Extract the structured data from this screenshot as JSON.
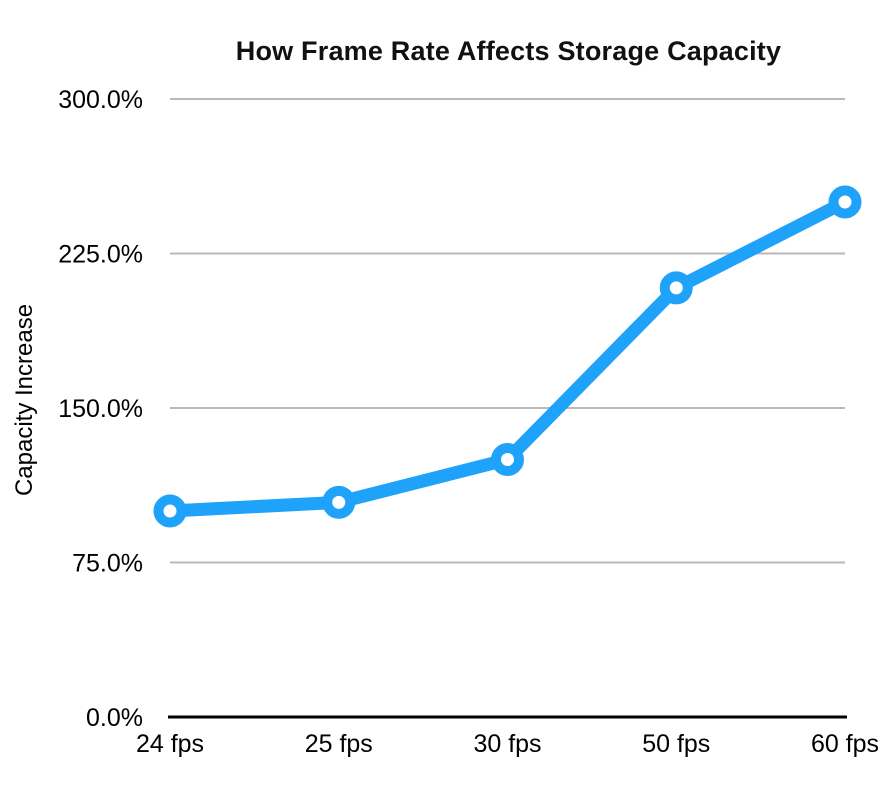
{
  "chart_data": {
    "type": "line",
    "title": "How Frame Rate Affects Storage Capacity",
    "xlabel": "",
    "ylabel": "Capacity Increase",
    "categories": [
      "24 fps",
      "25 fps",
      "30 fps",
      "50 fps",
      "60 fps"
    ],
    "series": [
      {
        "name": "Capacity Increase",
        "values": [
          100.0,
          104.2,
          125.0,
          208.3,
          250.0
        ]
      }
    ],
    "ylim": [
      0,
      300
    ],
    "yticks": [
      {
        "value": 0,
        "label": "0.0%"
      },
      {
        "value": 75,
        "label": "75.0%"
      },
      {
        "value": 150,
        "label": "150.0%"
      },
      {
        "value": 225,
        "label": "225.0%"
      },
      {
        "value": 300,
        "label": "300.0%"
      }
    ],
    "grid": "horizontal",
    "legend_position": "none",
    "marker": "circle-open",
    "colors": {
      "line": "#1FA2F9",
      "marker_fill": "#FFFFFF",
      "gridline": "#B9B9B9",
      "axis": "#000000",
      "text": "#000000",
      "background": "#FFFFFF"
    }
  }
}
